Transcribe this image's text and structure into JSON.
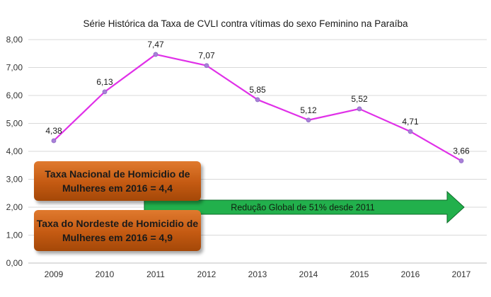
{
  "colors": {
    "line": "#e030e8",
    "marker": "#a980d8",
    "grid": "#d9d9d9",
    "arrow": "#22b04c",
    "callout": "#c8601a"
  },
  "chart_data": {
    "type": "line",
    "title": "Série Histórica da Taxa de CVLI contra vítimas do sexo Feminino na Paraíba",
    "xlabel": "",
    "ylabel": "",
    "categories": [
      "2009",
      "2010",
      "2011",
      "2012",
      "2013",
      "2014",
      "2015",
      "2016",
      "2017"
    ],
    "series": [
      {
        "values": [
          4.38,
          6.13,
          7.47,
          7.07,
          5.85,
          5.12,
          5.52,
          4.71,
          3.66
        ]
      }
    ],
    "data_labels": [
      "4,38",
      "6,13",
      "7,47",
      "7,07",
      "5,85",
      "5,12",
      "5,52",
      "4,71",
      "3,66"
    ],
    "ylim": [
      0,
      8
    ],
    "yticks": [
      "0,00",
      "1,00",
      "2,00",
      "3,00",
      "4,00",
      "5,00",
      "6,00",
      "7,00",
      "8,00"
    ],
    "grid": "horizontal",
    "annotations": {
      "arrow_text": "Redução Global de 51% desde 2011",
      "arrow_value": 2.0,
      "arrow_from": "2011",
      "arrow_to": "2017",
      "callout_national": "Taxa Nacional de Homicidio de\nMulheres em 2016 = 4,4",
      "callout_northeast": "Taxa  do Nordeste de Homicidio de\nMulheres em 2016 = 4,9"
    }
  }
}
